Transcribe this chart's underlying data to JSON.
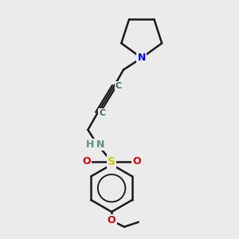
{
  "background_color": "#ebebeb",
  "figsize": [
    3.0,
    3.0
  ],
  "dpi": 100,
  "bond_color": "#1a1a1a",
  "bond_width": 1.8,
  "atom_bg": "#ebebeb",
  "colors": {
    "N": "#0000ee",
    "S": "#cccc00",
    "O": "#dd0000",
    "NH_H": "#5a9090",
    "NH_N": "#5a9090",
    "C": "#3a6a6a"
  },
  "font_sizes": {
    "N": 9,
    "S": 10,
    "O": 9,
    "NH": 9,
    "C": 8
  }
}
